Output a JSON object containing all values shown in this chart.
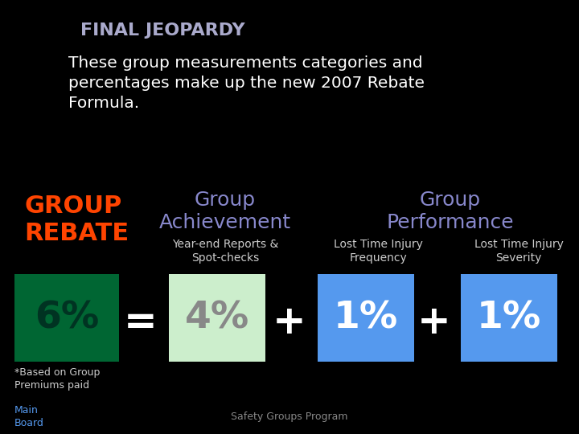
{
  "title": "FINAL JEOPARDY",
  "subtitle": "These group measurements categories and\npercentages make up the new 2007 Rebate\nFormula.",
  "group_rebate_label": "GROUP\nREBATE",
  "group_achievement_label": "Group\nAchievement",
  "group_performance_label": "Group\nPerformance",
  "achievement_sublabel": "Year-end Reports &\nSpot-checks",
  "performance_sublabel1": "Lost Time Injury\nFrequency",
  "performance_sublabel2": "Lost Time Injury\nSeverity",
  "box_6_value": "6%",
  "box_4_value": "4%",
  "box_1a_value": "1%",
  "box_1b_value": "1%",
  "footnote": "*Based on Group\nPremiums paid",
  "bottom_left": "Main\nBoard",
  "bottom_center": "Safety Groups Program",
  "bg_color": "#000000",
  "title_color": "#aaaacc",
  "subtitle_color": "#ffffff",
  "group_rebate_color": "#ff4400",
  "group_achievement_color": "#8888cc",
  "group_performance_color": "#8888cc",
  "sublabel_color": "#cccccc",
  "box_6_bg": "#006633",
  "box_6_text_color": "#003322",
  "box_4_bg": "#cceecc",
  "box_4_text_color": "#888888",
  "box_1_bg": "#5599ee",
  "box_1_text_color": "#ffffff",
  "operator_color": "#ffffff",
  "footnote_color": "#cccccc",
  "bottom_left_color": "#5599ee",
  "bottom_center_color": "#888888"
}
